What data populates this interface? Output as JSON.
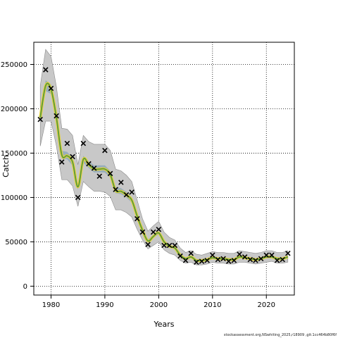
{
  "chart_data": {
    "type": "line",
    "xlabel": "Years",
    "ylabel": "Catch",
    "xlim": [
      1976.8,
      2025.2
    ],
    "ylim": [
      -10000,
      275000
    ],
    "xticks": [
      1980,
      1990,
      2000,
      2010,
      2020
    ],
    "yticks": [
      0,
      50000,
      100000,
      150000,
      200000,
      250000
    ],
    "grid": true,
    "colors": {
      "band_outer": "#c8c8c8",
      "band_inner": "#8aa6b8",
      "line_outer": "#e6d23c",
      "line_inner": "#5a9a3c",
      "points": "#000000"
    },
    "series": [
      {
        "kind": "observed",
        "marker": "x",
        "x": [
          1978,
          1979,
          1980,
          1981,
          1982,
          1983,
          1984,
          1985,
          1986,
          1987,
          1988,
          1989,
          1990,
          1991,
          1992,
          1993,
          1994,
          1995,
          1996,
          1997,
          1998,
          1999,
          2000,
          2001,
          2002,
          2003,
          2004,
          2005,
          2006,
          2007,
          2008,
          2009,
          2010,
          2011,
          2012,
          2013,
          2014,
          2015,
          2016,
          2017,
          2018,
          2019,
          2020,
          2021,
          2022,
          2023,
          2024
        ],
        "y": [
          188000,
          244000,
          223000,
          192000,
          140000,
          161000,
          146000,
          100000,
          161000,
          138000,
          133000,
          124000,
          153000,
          127000,
          109000,
          117000,
          103000,
          106000,
          76000,
          61000,
          47000,
          61000,
          64000,
          46000,
          46000,
          46000,
          34000,
          29000,
          37000,
          27000,
          28000,
          29000,
          35000,
          30000,
          31000,
          28000,
          29000,
          36000,
          33000,
          30000,
          29000,
          31000,
          35000,
          35000,
          29000,
          30000,
          37000
        ]
      },
      {
        "kind": "estimated",
        "x": [
          1978,
          1979,
          1980,
          1981,
          1982,
          1983,
          1984,
          1985,
          1986,
          1987,
          1988,
          1989,
          1990,
          1991,
          1992,
          1993,
          1994,
          1995,
          1996,
          1997,
          1998,
          1999,
          2000,
          2001,
          2002,
          2003,
          2004,
          2005,
          2006,
          2007,
          2008,
          2009,
          2010,
          2011,
          2012,
          2013,
          2014,
          2015,
          2016,
          2017,
          2018,
          2019,
          2020,
          2021,
          2022,
          2023,
          2024
        ],
        "y": [
          190000,
          226000,
          222000,
          190000,
          148000,
          147000,
          140000,
          112000,
          143000,
          137000,
          132000,
          132000,
          132000,
          126000,
          108000,
          107000,
          103000,
          97000,
          79000,
          63000,
          51000,
          56000,
          60000,
          50000,
          45000,
          43000,
          35000,
          31000,
          33000,
          29000,
          29000,
          30000,
          32000,
          31000,
          31000,
          30000,
          30000,
          33000,
          32000,
          31000,
          30000,
          31000,
          33000,
          33000,
          31000,
          31000,
          33000
        ],
        "lower": [
          158000,
          186000,
          186000,
          158000,
          120000,
          120000,
          113000,
          90000,
          118000,
          112000,
          107000,
          107000,
          106000,
          101000,
          86000,
          86000,
          83000,
          78000,
          64000,
          52000,
          42000,
          46000,
          50000,
          41000,
          37000,
          35000,
          29000,
          26000,
          27000,
          24000,
          24000,
          25000,
          27000,
          26000,
          26000,
          25000,
          25000,
          27000,
          27000,
          26000,
          25000,
          26000,
          27000,
          28000,
          26000,
          26000,
          27000
        ],
        "upper": [
          226000,
          267000,
          259000,
          225000,
          178000,
          177000,
          170000,
          137000,
          170000,
          163000,
          160000,
          160000,
          160000,
          153000,
          132000,
          130000,
          125000,
          118000,
          97000,
          76000,
          62000,
          68000,
          73000,
          61000,
          55000,
          52000,
          43000,
          38000,
          40000,
          36000,
          35000,
          37000,
          39000,
          38000,
          38000,
          37000,
          37000,
          40000,
          39000,
          38000,
          37000,
          38000,
          40000,
          40000,
          38000,
          38000,
          40000
        ]
      }
    ],
    "footer": "stockassessment.org,NSwhiting_2025,r18909 ,git:1cc464b80f6f"
  }
}
